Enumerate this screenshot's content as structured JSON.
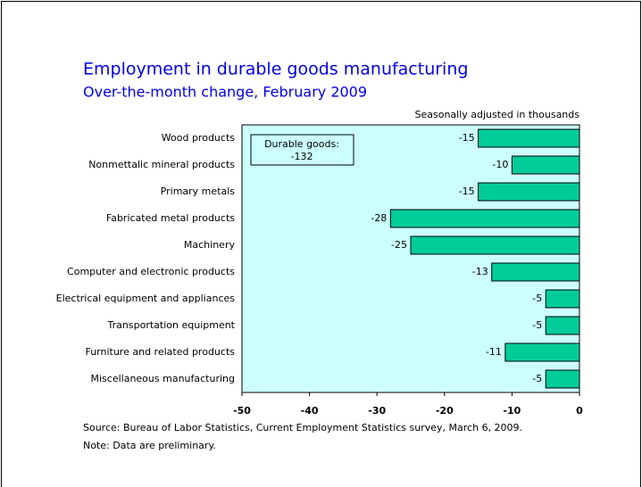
{
  "chart_data": {
    "type": "bar",
    "orientation": "horizontal",
    "title": "Employment in durable goods manufacturing",
    "subtitle": "Over-the-month change, February 2009",
    "units_note": "Seasonally adjusted in thousands",
    "categories": [
      "Wood products",
      "Nonmettalic mineral products",
      "Primary metals",
      "Fabricated metal products",
      "Machinery",
      "Computer and electronic products",
      "Electrical equipment and appliances",
      "Transportation equipment",
      "Furniture and related products",
      "Miscellaneous manufacturing"
    ],
    "values": [
      -15,
      -10,
      -15,
      -28,
      -25,
      -13,
      -5,
      -5,
      -11,
      -5
    ],
    "color": "#00cc99",
    "plot_background": "#ccffff",
    "xlim": [
      -50,
      0
    ],
    "xticks": [
      -50,
      -40,
      -30,
      -20,
      -10,
      0
    ],
    "grid": false,
    "annotation": {
      "text": "Durable goods:",
      "value": -132
    },
    "source": "Source:  Bureau of Labor Statistics, Current Employment Statistics survey, March 6, 2009.",
    "note": "Note:  Data are preliminary."
  }
}
